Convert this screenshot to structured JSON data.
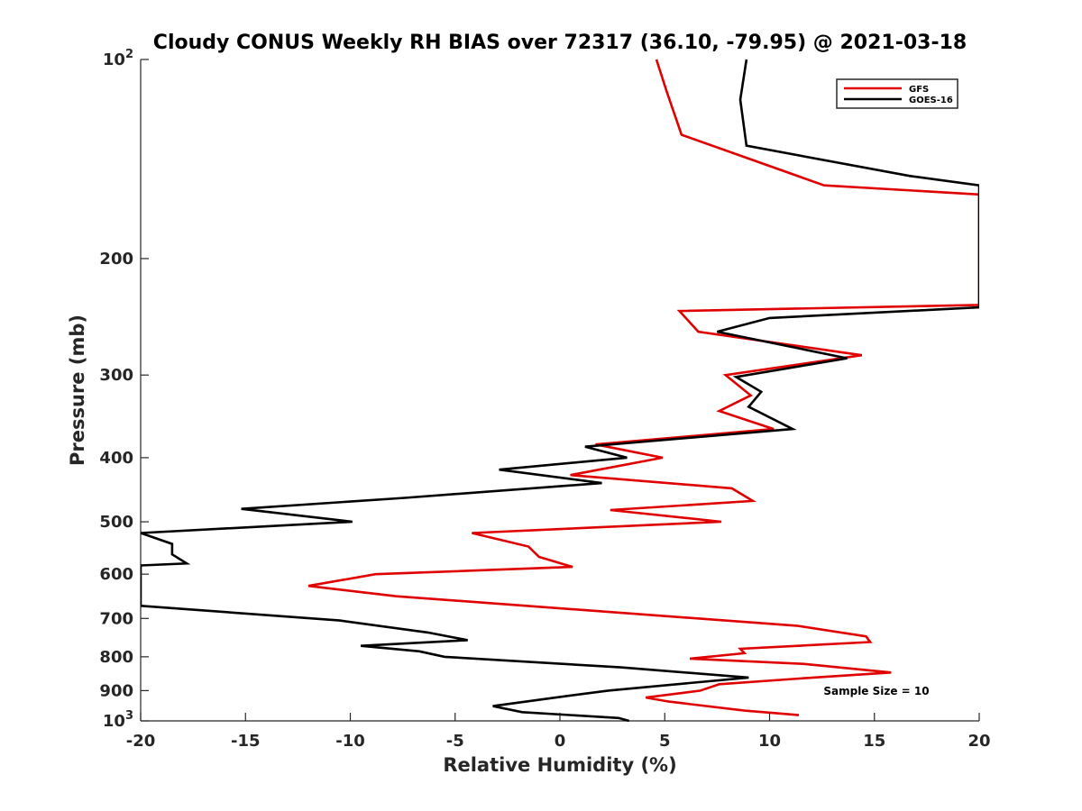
{
  "chart_data": {
    "type": "line",
    "title": "Cloudy CONUS Weekly RH BIAS over 72317 (36.10, -79.95) @ 2021-03-18",
    "xlabel": "Relative Humidity (%)",
    "ylabel": "Pressure (mb)",
    "xlim": [
      -20,
      20
    ],
    "ylim": [
      100,
      1000
    ],
    "yscale": "log",
    "y_reversed": true,
    "x_ticks": [
      "-20",
      "-15",
      "-10",
      "-5",
      "0",
      "5",
      "10",
      "15",
      "20"
    ],
    "y_ticks": [
      {
        "value": 100,
        "base": "10",
        "sup": "2"
      },
      {
        "value": 200,
        "base": "200",
        "sup": ""
      },
      {
        "value": 300,
        "base": "300",
        "sup": ""
      },
      {
        "value": 400,
        "base": "400",
        "sup": ""
      },
      {
        "value": 500,
        "base": "500",
        "sup": ""
      },
      {
        "value": 600,
        "base": "600",
        "sup": ""
      },
      {
        "value": 700,
        "base": "700",
        "sup": ""
      },
      {
        "value": 800,
        "base": "800",
        "sup": ""
      },
      {
        "value": 900,
        "base": "900",
        "sup": ""
      },
      {
        "value": 1000,
        "base": "10",
        "sup": "3"
      }
    ],
    "grid": false,
    "legend_position": "top-right",
    "annotation": "Sample Size = 10",
    "series": [
      {
        "name": "GFS",
        "color": "#e00000",
        "points": [
          [
            4.6,
            100
          ],
          [
            5.1,
            112
          ],
          [
            5.8,
            130
          ],
          [
            12.6,
            155
          ],
          [
            20.0,
            160
          ],
          [
            20.0,
            235
          ],
          [
            5.7,
            240
          ],
          [
            6.6,
            258
          ],
          [
            14.4,
            280
          ],
          [
            7.9,
            300
          ],
          [
            9.1,
            322
          ],
          [
            7.6,
            340
          ],
          [
            10.2,
            362
          ],
          [
            1.7,
            382
          ],
          [
            4.9,
            400
          ],
          [
            0.5,
            425
          ],
          [
            8.2,
            445
          ],
          [
            9.2,
            465
          ],
          [
            2.4,
            480
          ],
          [
            7.7,
            500
          ],
          [
            -4.2,
            520
          ],
          [
            -1.5,
            545
          ],
          [
            -1.0,
            565
          ],
          [
            0.6,
            585
          ],
          [
            -8.8,
            600
          ],
          [
            -12.0,
            625
          ],
          [
            -7.8,
            648
          ],
          [
            11.3,
            718
          ],
          [
            14.6,
            745
          ],
          [
            14.8,
            760
          ],
          [
            8.6,
            778
          ],
          [
            8.8,
            790
          ],
          [
            6.2,
            805
          ],
          [
            11.6,
            820
          ],
          [
            15.8,
            845
          ],
          [
            11.6,
            862
          ],
          [
            7.6,
            880
          ],
          [
            6.7,
            900
          ],
          [
            4.1,
            922
          ],
          [
            5.2,
            935
          ],
          [
            8.8,
            965
          ],
          [
            11.4,
            980
          ]
        ]
      },
      {
        "name": "GOES-16",
        "color": "#000000",
        "points": [
          [
            8.9,
            100
          ],
          [
            8.6,
            115
          ],
          [
            8.9,
            135
          ],
          [
            16.7,
            150
          ],
          [
            20.0,
            155
          ],
          [
            20.0,
            237
          ],
          [
            10.0,
            246
          ],
          [
            7.5,
            258
          ],
          [
            13.7,
            283
          ],
          [
            8.4,
            302
          ],
          [
            9.6,
            318
          ],
          [
            9.0,
            335
          ],
          [
            11.1,
            362
          ],
          [
            1.2,
            385
          ],
          [
            3.2,
            400
          ],
          [
            -2.9,
            417
          ],
          [
            2.0,
            437
          ],
          [
            -7.4,
            460
          ],
          [
            -15.2,
            478
          ],
          [
            -9.9,
            500
          ],
          [
            -20.0,
            520
          ],
          [
            -18.5,
            540
          ],
          [
            -18.5,
            560
          ],
          [
            -17.8,
            578
          ],
          [
            -20.0,
            582
          ],
          [
            -20.0,
            670
          ],
          [
            -10.5,
            705
          ],
          [
            -6.3,
            735
          ],
          [
            -4.4,
            755
          ],
          [
            -9.5,
            770
          ],
          [
            -6.7,
            785
          ],
          [
            -5.5,
            800
          ],
          [
            2.9,
            830
          ],
          [
            9.0,
            860
          ],
          [
            2.3,
            900
          ],
          [
            0.0,
            920
          ],
          [
            -3.2,
            950
          ],
          [
            -1.8,
            970
          ],
          [
            2.8,
            990
          ],
          [
            3.3,
            1000
          ]
        ]
      }
    ]
  }
}
